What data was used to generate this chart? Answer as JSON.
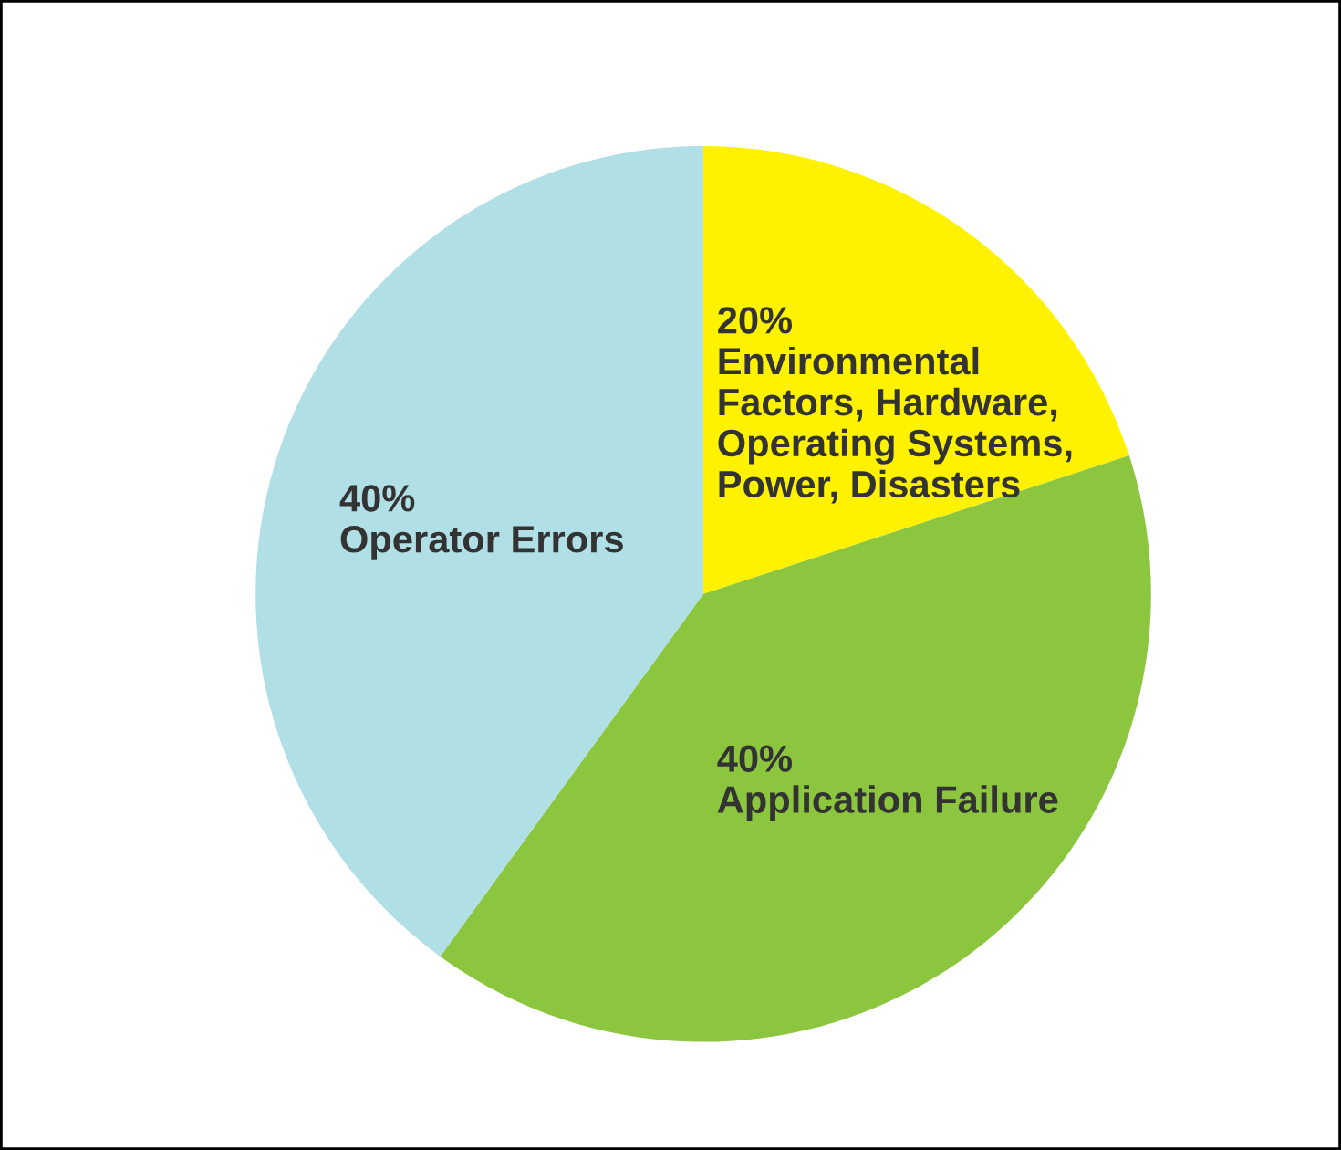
{
  "chart_data": {
    "type": "pie",
    "categories": [
      "Environmental Factors, Hardware, Operating Systems, Power, Disasters",
      "Application Failure",
      "Operator Errors"
    ],
    "values": [
      20,
      40,
      40
    ],
    "value_labels": [
      "20%",
      "40%",
      "40%"
    ],
    "colors": [
      "#fff200",
      "#8cc63f",
      "#b0dfe5"
    ],
    "legend": false
  }
}
